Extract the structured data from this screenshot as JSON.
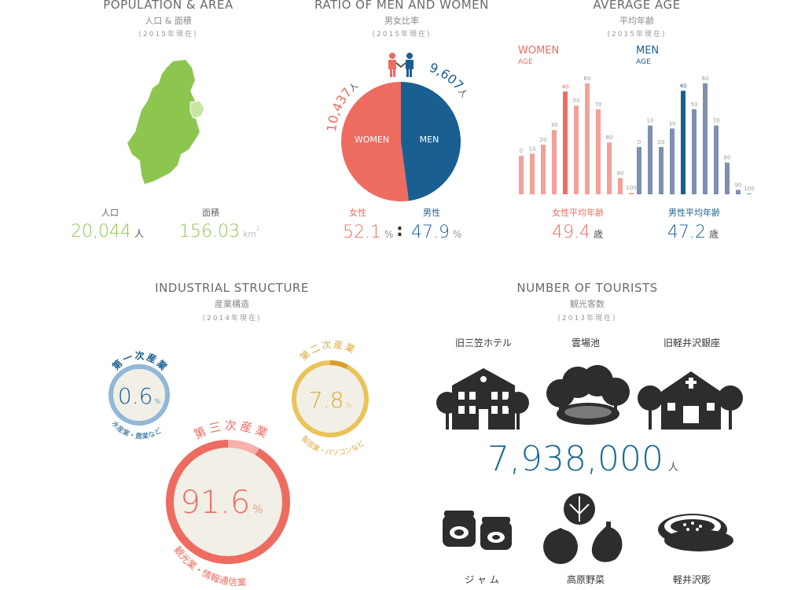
{
  "colors": {
    "green": "#8dc64f",
    "women": "#ee6b60",
    "men": "#1a5f92",
    "women_bar": "#f3a199",
    "men_bar": "#7e8fb0",
    "tourism": "#1a6a96",
    "primary": "#8fb8d9",
    "secondary": "#eac35a",
    "tertiary": "#ee6b60",
    "dark": "#2d2d2d"
  },
  "population": {
    "title": "POPULATION & AREA",
    "subtitle": "人口 & 面積",
    "year": "(2015年現在)",
    "pop_label": "人口",
    "pop_value": "20,044",
    "pop_unit": "人",
    "area_label": "面積",
    "area_value": "156.03",
    "area_unit": "km",
    "area_sup": "2"
  },
  "ratio": {
    "title": "RATIO OF MEN AND WOMEN",
    "subtitle": "男女比率",
    "year": "(2015年現在)",
    "women_count": "10,437",
    "women_count_unit": "人",
    "men_count": "9,607",
    "men_count_unit": "人",
    "women_pie": "WOMEN",
    "men_pie": "MEN",
    "women_label": "女性",
    "men_label": "男性",
    "women_pct": "52.1",
    "men_pct": "47.9",
    "pct_unit": "%",
    "separator": ":"
  },
  "age": {
    "title": "AVERAGE AGE",
    "subtitle": "平均年齢",
    "year": "(2015年現在)",
    "women_title": "WOMEN",
    "men_title": "MEN",
    "axis_word": "AGE",
    "women_avg_label": "女性平均年齢",
    "women_avg": "49.4",
    "men_avg_label": "男性平均年齢",
    "men_avg": "47.2",
    "avg_unit": "歳"
  },
  "industry": {
    "title": "INDUSTRIAL STRUCTURE",
    "subtitle": "産業構造",
    "year": "(2014年現在)",
    "primary_title": "第一次産業",
    "primary_pct": "0.6",
    "primary_desc": "水産業・農業など",
    "secondary_title": "第二次産業",
    "secondary_pct": "7.8",
    "secondary_desc": "製造業・パソコンなど",
    "tertiary_title": "第三次産業",
    "tertiary_pct": "91.6",
    "tertiary_desc": "観光業・情報通信業",
    "pct_unit": "%"
  },
  "tourists": {
    "title": "NUMBER OF TOURISTS",
    "subtitle": "観光客数",
    "year": "(2013年現在)",
    "spot1": "旧三笠ホテル",
    "spot2": "雲場池",
    "spot3": "旧軽井沢銀座",
    "count": "7,938,000",
    "count_unit": "人",
    "item1": "ジャム",
    "item2": "高原野菜",
    "item3": "軽井沢彫"
  },
  "chart_data": [
    {
      "type": "pie",
      "title": "RATIO OF MEN AND WOMEN",
      "categories": [
        "WOMEN",
        "MEN"
      ],
      "values": [
        52.1,
        47.9
      ]
    },
    {
      "type": "bar",
      "title": "AVERAGE AGE",
      "xlabel": "AGE",
      "ylabel": "",
      "categories": [
        "0",
        "10",
        "20",
        "30",
        "40",
        "50",
        "60",
        "70",
        "80",
        "90",
        "100"
      ],
      "series": [
        {
          "name": "WOMEN",
          "values": [
            5.2,
            5.5,
            6.7,
            8.7,
            13.9,
            12.0,
            15.0,
            11.5,
            7.0,
            2.2,
            0.2
          ]
        },
        {
          "name": "MEN",
          "values": [
            6.4,
            9.3,
            6.4,
            8.9,
            14.0,
            11.5,
            15.0,
            9.3,
            4.3,
            0.6,
            0.1
          ]
        }
      ],
      "highlight": "40"
    },
    {
      "type": "pie",
      "title": "INDUSTRIAL STRUCTURE",
      "categories": [
        "第一次産業",
        "第二次産業",
        "第三次産業"
      ],
      "values": [
        0.6,
        7.8,
        91.6
      ]
    }
  ]
}
